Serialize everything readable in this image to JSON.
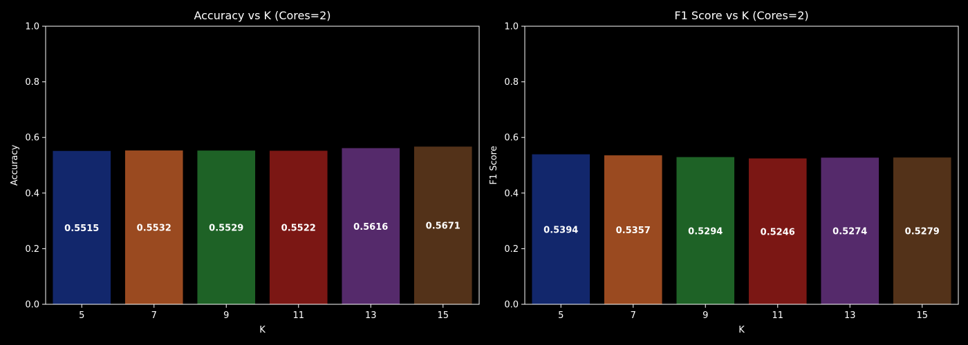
{
  "colors": {
    "background": "#000000",
    "foreground": "#ffffff",
    "bar_palette": [
      "#12276c",
      "#9a4a20",
      "#1e6226",
      "#7b1714",
      "#552a6b",
      "#533219"
    ]
  },
  "chart_data": [
    {
      "type": "bar",
      "title": "Accuracy vs K (Cores=2)",
      "xlabel": "K",
      "ylabel": "Accuracy",
      "categories": [
        "5",
        "7",
        "9",
        "11",
        "13",
        "15"
      ],
      "values": [
        0.5515,
        0.5532,
        0.5529,
        0.5522,
        0.5616,
        0.5671
      ],
      "value_labels": [
        "0.5515",
        "0.5532",
        "0.5529",
        "0.5522",
        "0.5616",
        "0.5671"
      ],
      "ylim": [
        0,
        1.0
      ],
      "yticks": [
        0.0,
        0.2,
        0.4,
        0.6,
        0.8,
        1.0
      ],
      "ytick_labels": [
        "0.0",
        "0.2",
        "0.4",
        "0.6",
        "0.8",
        "1.0"
      ],
      "grid": false,
      "legend": "none"
    },
    {
      "type": "bar",
      "title": "F1 Score vs K (Cores=2)",
      "xlabel": "K",
      "ylabel": "F1 Score",
      "categories": [
        "5",
        "7",
        "9",
        "11",
        "13",
        "15"
      ],
      "values": [
        0.5394,
        0.5357,
        0.5294,
        0.5246,
        0.5274,
        0.5279
      ],
      "value_labels": [
        "0.5394",
        "0.5357",
        "0.5294",
        "0.5246",
        "0.5274",
        "0.5279"
      ],
      "ylim": [
        0,
        1.0
      ],
      "yticks": [
        0.0,
        0.2,
        0.4,
        0.6,
        0.8,
        1.0
      ],
      "ytick_labels": [
        "0.0",
        "0.2",
        "0.4",
        "0.6",
        "0.8",
        "1.0"
      ],
      "grid": false,
      "legend": "none"
    }
  ]
}
